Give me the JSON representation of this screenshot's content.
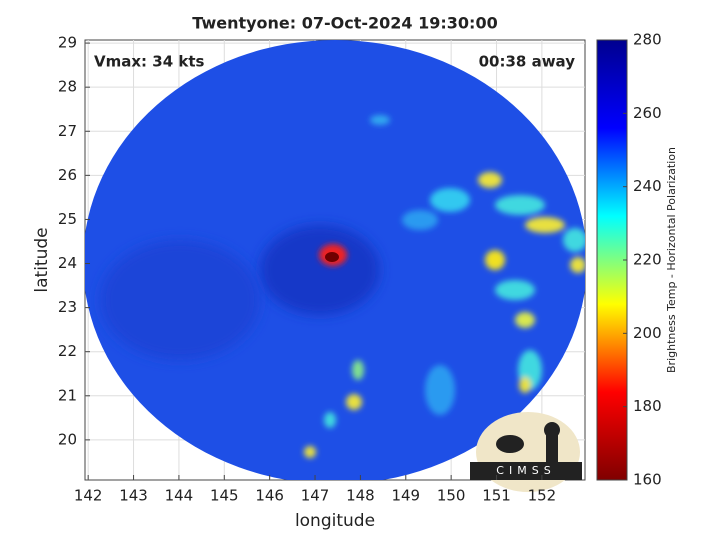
{
  "chart_data": {
    "type": "map",
    "title": "Twentyone: 07-Oct-2024 19:30:00",
    "annotations": [
      "Vmax: 34 kts",
      "00:38 away"
    ],
    "xlabel": "longitude",
    "ylabel": "latitude",
    "xlim": [
      141.93,
      152.95
    ],
    "xticks": [
      142,
      143,
      144,
      145,
      146,
      147,
      148,
      149,
      150,
      151,
      152
    ],
    "ylim": [
      19.09,
      29.07
    ],
    "yticks": [
      20,
      21,
      22,
      23,
      24,
      25,
      26,
      27,
      28,
      29
    ],
    "grid": true,
    "colorbar": {
      "label": "Brightness Temp - Horizontal Polarization",
      "lim": [
        160,
        280
      ],
      "ticks": [
        160,
        180,
        200,
        220,
        240,
        260,
        280
      ],
      "colors": [
        "#800000",
        "#ff0000",
        "#ffff00",
        "#00ffff",
        "#0000ff",
        "#00008f"
      ]
    },
    "logo": "CIMSS"
  }
}
